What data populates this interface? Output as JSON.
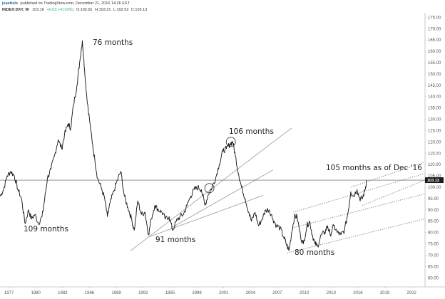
{
  "header": {
    "author": "jsaettele",
    "published": "published on TradingView.com, December 21, 2016 14:26 EST",
    "symbol": "INDEX:DXY, W",
    "last": "103.16",
    "change": "+0.03 (+0.03%)",
    "open": "O:102.91",
    "high": "H:103.21",
    "low": "L:102.52",
    "close": "C:103.13"
  },
  "annotations": [
    "76 months",
    "109 months",
    "91 months",
    "106 months",
    "80 months",
    "105 months as of Dec '16"
  ],
  "colors": {
    "price": "#111111",
    "channel_solid": "#9a9a9a",
    "channel_dotted": "#777777",
    "price_line": "#555555",
    "price_label_bg": "#1a1a1a"
  },
  "chart_data": {
    "type": "line",
    "title": "",
    "xlabel": "",
    "ylabel": "",
    "x_ticks": [
      "1977",
      "1980",
      "1983",
      "1986",
      "1989",
      "1992",
      "1995",
      "1998",
      "2001",
      "2004",
      "2007",
      "2010",
      "2013",
      "2016",
      "2019",
      "2022"
    ],
    "y_ticks": [
      "60.00",
      "65.00",
      "70.00",
      "75.00",
      "80.00",
      "85.00",
      "90.00",
      "95.00",
      "100.00",
      "105.00",
      "110.00",
      "115.00",
      "120.00",
      "125.00",
      "130.00",
      "135.00",
      "140.00",
      "145.00",
      "150.00",
      "155.00",
      "160.00",
      "165.00",
      "170.00",
      "175.00"
    ],
    "xlim": [
      1976,
      2023.5
    ],
    "ylim": [
      56,
      177
    ],
    "grid": false,
    "last_price_label": "103.13",
    "last_price": 103.13,
    "series": [
      {
        "values": [
          [
            1976.0,
            96
          ],
          [
            1976.4,
            99
          ],
          [
            1976.8,
            105
          ],
          [
            1977.2,
            107
          ],
          [
            1977.6,
            105
          ],
          [
            1978.0,
            99
          ],
          [
            1978.4,
            95
          ],
          [
            1978.8,
            84
          ],
          [
            1979.2,
            90
          ],
          [
            1979.5,
            86
          ],
          [
            1979.9,
            88
          ],
          [
            1980.3,
            84
          ],
          [
            1980.7,
            87
          ],
          [
            1981.0,
            95
          ],
          [
            1981.3,
            104
          ],
          [
            1981.7,
            108
          ],
          [
            1982.1,
            114
          ],
          [
            1982.5,
            121
          ],
          [
            1982.9,
            117
          ],
          [
            1983.2,
            123
          ],
          [
            1983.6,
            128
          ],
          [
            1983.9,
            126
          ],
          [
            1984.2,
            136
          ],
          [
            1984.6,
            145
          ],
          [
            1984.9,
            155
          ],
          [
            1985.2,
            164.7
          ],
          [
            1985.45,
            152
          ],
          [
            1985.7,
            140
          ],
          [
            1986.0,
            130
          ],
          [
            1986.3,
            120
          ],
          [
            1986.6,
            112
          ],
          [
            1986.9,
            104
          ],
          [
            1987.3,
            100
          ],
          [
            1987.7,
            95
          ],
          [
            1988.0,
            87
          ],
          [
            1988.3,
            93
          ],
          [
            1988.7,
            98
          ],
          [
            1989.1,
            103
          ],
          [
            1989.5,
            107
          ],
          [
            1989.9,
            96
          ],
          [
            1990.3,
            91
          ],
          [
            1990.7,
            86
          ],
          [
            1991.0,
            81
          ],
          [
            1991.4,
            94
          ],
          [
            1991.8,
            88
          ],
          [
            1992.2,
            89
          ],
          [
            1992.6,
            79
          ],
          [
            1992.9,
            86
          ],
          [
            1993.3,
            92
          ],
          [
            1993.7,
            90
          ],
          [
            1994.1,
            89
          ],
          [
            1994.5,
            86
          ],
          [
            1994.9,
            87
          ],
          [
            1995.3,
            81
          ],
          [
            1995.7,
            85
          ],
          [
            1996.1,
            87
          ],
          [
            1996.5,
            88
          ],
          [
            1996.9,
            92
          ],
          [
            1997.3,
            96
          ],
          [
            1997.7,
            99
          ],
          [
            1998.1,
            100
          ],
          [
            1998.5,
            99
          ],
          [
            1998.9,
            92
          ],
          [
            1999.3,
            97
          ],
          [
            1999.7,
            100
          ],
          [
            2000.1,
            104
          ],
          [
            2000.5,
            110
          ],
          [
            2000.9,
            116
          ],
          [
            2001.3,
            117
          ],
          [
            2001.7,
            119
          ],
          [
            2002.0,
            120.2
          ],
          [
            2002.3,
            114
          ],
          [
            2002.7,
            105
          ],
          [
            2003.0,
            100
          ],
          [
            2003.4,
            95
          ],
          [
            2003.8,
            89
          ],
          [
            2004.1,
            85
          ],
          [
            2004.5,
            89
          ],
          [
            2004.9,
            83
          ],
          [
            2005.3,
            86
          ],
          [
            2005.7,
            90
          ],
          [
            2006.1,
            90
          ],
          [
            2006.5,
            86
          ],
          [
            2006.9,
            83
          ],
          [
            2007.3,
            82
          ],
          [
            2007.7,
            78
          ],
          [
            2008.0,
            75
          ],
          [
            2008.3,
            72
          ],
          [
            2008.6,
            80
          ],
          [
            2008.9,
            87
          ],
          [
            2009.2,
            87
          ],
          [
            2009.6,
            78
          ],
          [
            2009.9,
            75
          ],
          [
            2010.3,
            83
          ],
          [
            2010.6,
            85
          ],
          [
            2010.9,
            79
          ],
          [
            2011.2,
            75
          ],
          [
            2011.5,
            74
          ],
          [
            2011.9,
            79
          ],
          [
            2012.3,
            80
          ],
          [
            2012.6,
            83
          ],
          [
            2012.9,
            79
          ],
          [
            2013.3,
            83
          ],
          [
            2013.7,
            80
          ],
          [
            2014.1,
            79
          ],
          [
            2014.5,
            81
          ],
          [
            2014.9,
            89
          ],
          [
            2015.2,
            98
          ],
          [
            2015.5,
            96
          ],
          [
            2015.9,
            99
          ],
          [
            2016.2,
            95
          ],
          [
            2016.5,
            95
          ],
          [
            2016.8,
            99
          ],
          [
            2016.97,
            103.13
          ]
        ]
      }
    ],
    "channels": [
      {
        "style": "solid",
        "from": [
          1990.6,
          72
        ],
        "to": [
          2008.6,
          126.2
        ]
      },
      {
        "style": "solid",
        "from": [
          1995.1,
          82
        ],
        "to": [
          2006.5,
          107.6
        ]
      },
      {
        "style": "solid",
        "from": [
          1992.6,
          78
        ],
        "to": [
          2005.4,
          96.4
        ]
      },
      {
        "style": "dotted",
        "from": [
          2015.2,
          100
        ],
        "to": [
          2023.4,
          111
        ]
      },
      {
        "style": "dotted",
        "from": [
          2016.5,
          92
        ],
        "to": [
          2023.4,
          103
        ]
      },
      {
        "style": "dotted",
        "from": [
          2008.8,
          89
        ],
        "to": [
          2023.4,
          106
        ]
      },
      {
        "style": "dotted",
        "from": [
          2008.6,
          82
        ],
        "to": [
          2023.4,
          97
        ]
      },
      {
        "style": "dotted",
        "from": [
          2008.1,
          71
        ],
        "to": [
          2023.4,
          86
        ]
      }
    ],
    "circles": [
      [
        1999.4,
        99.6
      ],
      [
        2001.8,
        120
      ]
    ]
  }
}
